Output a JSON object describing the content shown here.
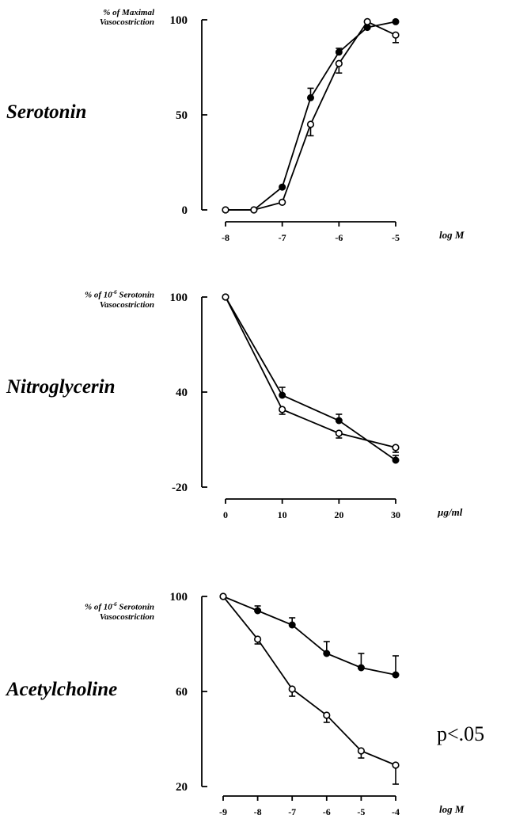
{
  "chart_data": [
    {
      "type": "line",
      "drug_label": "Serotonin",
      "ylabel_lines": [
        "% of Maximal",
        "Vasocostriction"
      ],
      "xlabel": "log M",
      "x": [
        -8,
        -7.5,
        -7,
        -6.5,
        -6,
        -5.5,
        -5
      ],
      "xticks": [
        -8,
        -7,
        -6,
        -5
      ],
      "xlim": [
        -8,
        -5
      ],
      "yticks": [
        0,
        50,
        100
      ],
      "ylim": [
        0,
        100
      ],
      "series": [
        {
          "marker": "filled",
          "values": [
            0,
            0,
            12,
            59,
            83,
            96,
            99
          ],
          "errors": [
            0,
            0,
            0,
            5,
            2,
            1,
            0
          ]
        },
        {
          "marker": "open",
          "values": [
            0,
            0,
            4,
            45,
            77,
            99,
            92
          ],
          "errors": [
            0,
            0,
            0,
            6,
            5,
            0,
            4
          ]
        }
      ]
    },
    {
      "type": "line",
      "drug_label": "Nitroglycerin",
      "ylabel_lines": [
        "% of 10",
        "Serotonin",
        "Vasocostriction"
      ],
      "ylabel_sup": "-6",
      "xlabel": "µg/ml",
      "x": [
        0,
        10,
        20,
        30
      ],
      "xticks": [
        0,
        10,
        20,
        30
      ],
      "xlim": [
        0,
        30
      ],
      "yticks": [
        -20,
        40,
        100
      ],
      "ylim": [
        -20,
        100
      ],
      "series": [
        {
          "marker": "filled",
          "values": [
            100,
            38,
            22,
            -3
          ],
          "errors": [
            0,
            5,
            4,
            3
          ]
        },
        {
          "marker": "open",
          "values": [
            100,
            29,
            14,
            5
          ],
          "errors": [
            0,
            3,
            3,
            3
          ]
        }
      ]
    },
    {
      "type": "line",
      "drug_label": "Acetylcholine",
      "ylabel_lines": [
        "% of 10",
        "Serotonin",
        "Vasocostriction"
      ],
      "ylabel_sup": "-6",
      "xlabel": "log M",
      "x": [
        -9,
        -8,
        -7,
        -6,
        -5,
        -4
      ],
      "xticks": [
        -9,
        -8,
        -7,
        -6,
        -5,
        -4
      ],
      "xlim": [
        -9,
        -4
      ],
      "yticks": [
        20,
        60,
        100
      ],
      "ylim": [
        20,
        100
      ],
      "annotation": "p<.05",
      "series": [
        {
          "marker": "filled",
          "values": [
            100,
            94,
            88,
            76,
            70,
            67
          ],
          "errors": [
            0,
            2,
            3,
            5,
            6,
            8
          ]
        },
        {
          "marker": "open",
          "values": [
            100,
            82,
            61,
            50,
            35,
            29
          ],
          "errors": [
            0,
            2,
            3,
            3,
            3,
            8
          ]
        }
      ]
    }
  ]
}
